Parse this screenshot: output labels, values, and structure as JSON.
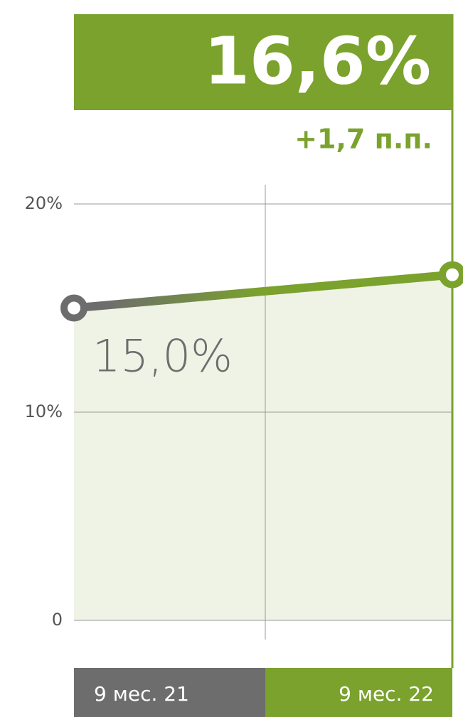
{
  "chart_data": {
    "type": "line",
    "categories": [
      "9 мес. 21",
      "9 мес. 22"
    ],
    "series": [
      {
        "color": "#7aa22c",
        "values": [
          15.0,
          16.6
        ],
        "value_labels": [
          "15,0%",
          "16,6%"
        ]
      }
    ],
    "colors": [
      "#6d6d6d",
      "#7aa22c"
    ],
    "annotation": "+1,7 п.п.",
    "ylim": [
      0,
      20
    ],
    "yticks": [
      0,
      {
        "value": 10,
        "label": "10%"
      },
      {
        "value": 20,
        "label": "20%"
      }
    ],
    "grid": true
  }
}
